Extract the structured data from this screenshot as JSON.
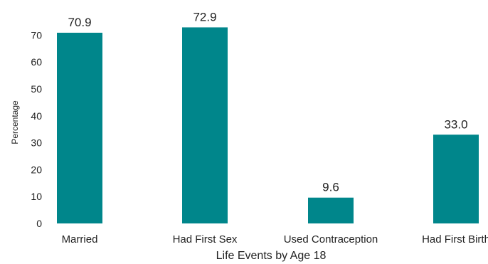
{
  "chart_data": {
    "type": "bar",
    "categories": [
      "Married",
      "Had First Sex",
      "Used Contraception",
      "Had First Birth"
    ],
    "values": [
      70.9,
      72.9,
      9.6,
      33.0
    ],
    "data_labels": [
      "70.9",
      "72.9",
      "9.6",
      "33.0"
    ],
    "title": "",
    "xlabel": "Life Events by Age 18",
    "ylabel": "Percentage",
    "ylim": [
      0,
      80
    ],
    "yticks": [
      "0",
      "10",
      "20",
      "30",
      "40",
      "50",
      "60",
      "70"
    ],
    "bar_color": "#00868B",
    "grid": false,
    "legend": "none"
  }
}
